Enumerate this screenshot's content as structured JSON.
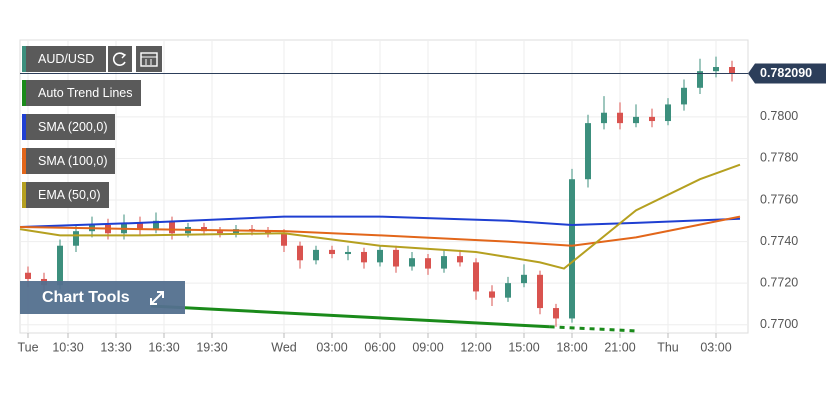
{
  "chart_data": {
    "type": "candlestick",
    "symbol": "AUD/USD",
    "tools_label": "Chart Tools",
    "x": [
      8,
      9,
      10,
      11,
      12,
      13,
      14,
      15,
      16,
      17,
      18,
      19,
      20,
      21,
      22,
      23,
      24,
      25,
      26,
      27,
      28,
      29,
      30,
      31,
      32,
      33,
      34,
      35,
      36,
      37,
      38,
      39,
      40,
      41,
      42,
      43,
      44,
      45,
      46,
      47,
      48,
      49,
      50,
      51,
      52
    ],
    "open": [
      0.7725,
      0.7722,
      0.7719,
      0.7738,
      0.7745,
      0.7748,
      0.7744,
      0.7749,
      0.7746,
      0.775,
      0.7744,
      0.7747,
      0.7745,
      0.7744,
      0.7746,
      0.7745,
      0.7744,
      0.7738,
      0.7731,
      0.7736,
      0.7734,
      0.7735,
      0.773,
      0.7736,
      0.7728,
      0.7732,
      0.7727,
      0.7733,
      0.773,
      0.7716,
      0.7713,
      0.772,
      0.7724,
      0.7708,
      0.7703,
      0.777,
      0.7797,
      0.7802,
      0.7797,
      0.78,
      0.7798,
      0.7806,
      0.7814,
      0.7822,
      0.7824
    ],
    "high": [
      0.7728,
      0.7725,
      0.7741,
      0.7748,
      0.7752,
      0.7751,
      0.7753,
      0.7752,
      0.7754,
      0.7752,
      0.7749,
      0.7749,
      0.7747,
      0.7748,
      0.7748,
      0.7747,
      0.7746,
      0.774,
      0.7738,
      0.7738,
      0.7738,
      0.7737,
      0.7738,
      0.7738,
      0.7735,
      0.7734,
      0.7736,
      0.7736,
      0.7732,
      0.7719,
      0.7723,
      0.7729,
      0.7726,
      0.771,
      0.7775,
      0.7801,
      0.781,
      0.7807,
      0.7806,
      0.7804,
      0.7809,
      0.7818,
      0.7828,
      0.7829,
      0.7827
    ],
    "low": [
      0.7718,
      0.7716,
      0.7717,
      0.7735,
      0.7742,
      0.7741,
      0.7741,
      0.7743,
      0.7744,
      0.7741,
      0.7742,
      0.7743,
      0.7742,
      0.7742,
      0.7743,
      0.7742,
      0.7735,
      0.7727,
      0.7729,
      0.7732,
      0.7731,
      0.7727,
      0.7728,
      0.7725,
      0.7726,
      0.7724,
      0.7725,
      0.7728,
      0.7712,
      0.7709,
      0.7711,
      0.7718,
      0.7705,
      0.7699,
      0.7701,
      0.7766,
      0.7794,
      0.7794,
      0.7795,
      0.7795,
      0.7796,
      0.7803,
      0.7811,
      0.7819,
      0.7817
    ],
    "close": [
      0.7722,
      0.7719,
      0.7738,
      0.7745,
      0.7748,
      0.7744,
      0.7749,
      0.7746,
      0.775,
      0.7744,
      0.7747,
      0.7745,
      0.7744,
      0.7746,
      0.7745,
      0.7744,
      0.7738,
      0.7731,
      0.7736,
      0.7734,
      0.7735,
      0.773,
      0.7736,
      0.7728,
      0.7732,
      0.7727,
      0.7733,
      0.773,
      0.7716,
      0.7713,
      0.772,
      0.7724,
      0.7708,
      0.7703,
      0.777,
      0.7797,
      0.7802,
      0.7797,
      0.78,
      0.7798,
      0.7806,
      0.7814,
      0.7822,
      0.7824,
      0.7821
    ],
    "up_color": "#3c8f7d",
    "down_color": "#d9534f",
    "lines": [
      {
        "name": "Auto Trend Lines",
        "color": "#1a8a1a",
        "x": [
          15.7,
          40.6
        ],
        "values": [
          0.7709,
          0.7699
        ]
      },
      {
        "name": "SMA (200,0)",
        "color": "#1f3fd1",
        "x": [
          7.5,
          15,
          24,
          30,
          38,
          42,
          46,
          52.5
        ],
        "values": [
          0.7747,
          0.7749,
          0.7752,
          0.7752,
          0.775,
          0.7748,
          0.7749,
          0.7751
        ]
      },
      {
        "name": "SMA (100,0)",
        "color": "#e2661a",
        "x": [
          7.5,
          15,
          24,
          30,
          38,
          42,
          46,
          52.5
        ],
        "values": [
          0.7747,
          0.7746,
          0.7745,
          0.7743,
          0.774,
          0.7738,
          0.7742,
          0.7752
        ]
      },
      {
        "name": "EMA (50,0)",
        "color": "#b5a020",
        "x": [
          7.5,
          10,
          15,
          24,
          30,
          36,
          40,
          41.5,
          46,
          50,
          52.5
        ],
        "values": [
          0.7746,
          0.7743,
          0.7743,
          0.7744,
          0.7738,
          0.7735,
          0.773,
          0.7727,
          0.7755,
          0.777,
          0.7777
        ]
      }
    ],
    "trend_projection": {
      "color": "#1a8a1a",
      "x": [
        40.6,
        46
      ],
      "values": [
        0.7699,
        0.7697
      ]
    },
    "last_price": {
      "value": 0.78209,
      "label": "0.782090"
    },
    "xlim": [
      7.5,
      53
    ],
    "ylim": [
      0.7696,
      0.7837
    ],
    "xticks": [
      {
        "value": 8,
        "label": "Tue"
      },
      {
        "value": 10.5,
        "label": "10:30"
      },
      {
        "value": 13.5,
        "label": "13:30"
      },
      {
        "value": 16.5,
        "label": "16:30"
      },
      {
        "value": 19.5,
        "label": "19:30"
      },
      {
        "value": 24,
        "label": "Wed"
      },
      {
        "value": 27,
        "label": "03:00"
      },
      {
        "value": 30,
        "label": "06:00"
      },
      {
        "value": 33,
        "label": "09:00"
      },
      {
        "value": 36,
        "label": "12:00"
      },
      {
        "value": 39,
        "label": "15:00"
      },
      {
        "value": 42,
        "label": "18:00"
      },
      {
        "value": 45,
        "label": "21:00"
      },
      {
        "value": 48,
        "label": "Thu"
      },
      {
        "value": 51,
        "label": "03:00"
      }
    ],
    "yticks": [
      {
        "value": 0.77,
        "label": "0.7700"
      },
      {
        "value": 0.772,
        "label": "0.7720"
      },
      {
        "value": 0.774,
        "label": "0.7740"
      },
      {
        "value": 0.776,
        "label": "0.7760"
      },
      {
        "value": 0.778,
        "label": "0.7780"
      },
      {
        "value": 0.78,
        "label": "0.7800"
      }
    ],
    "grid": true
  }
}
